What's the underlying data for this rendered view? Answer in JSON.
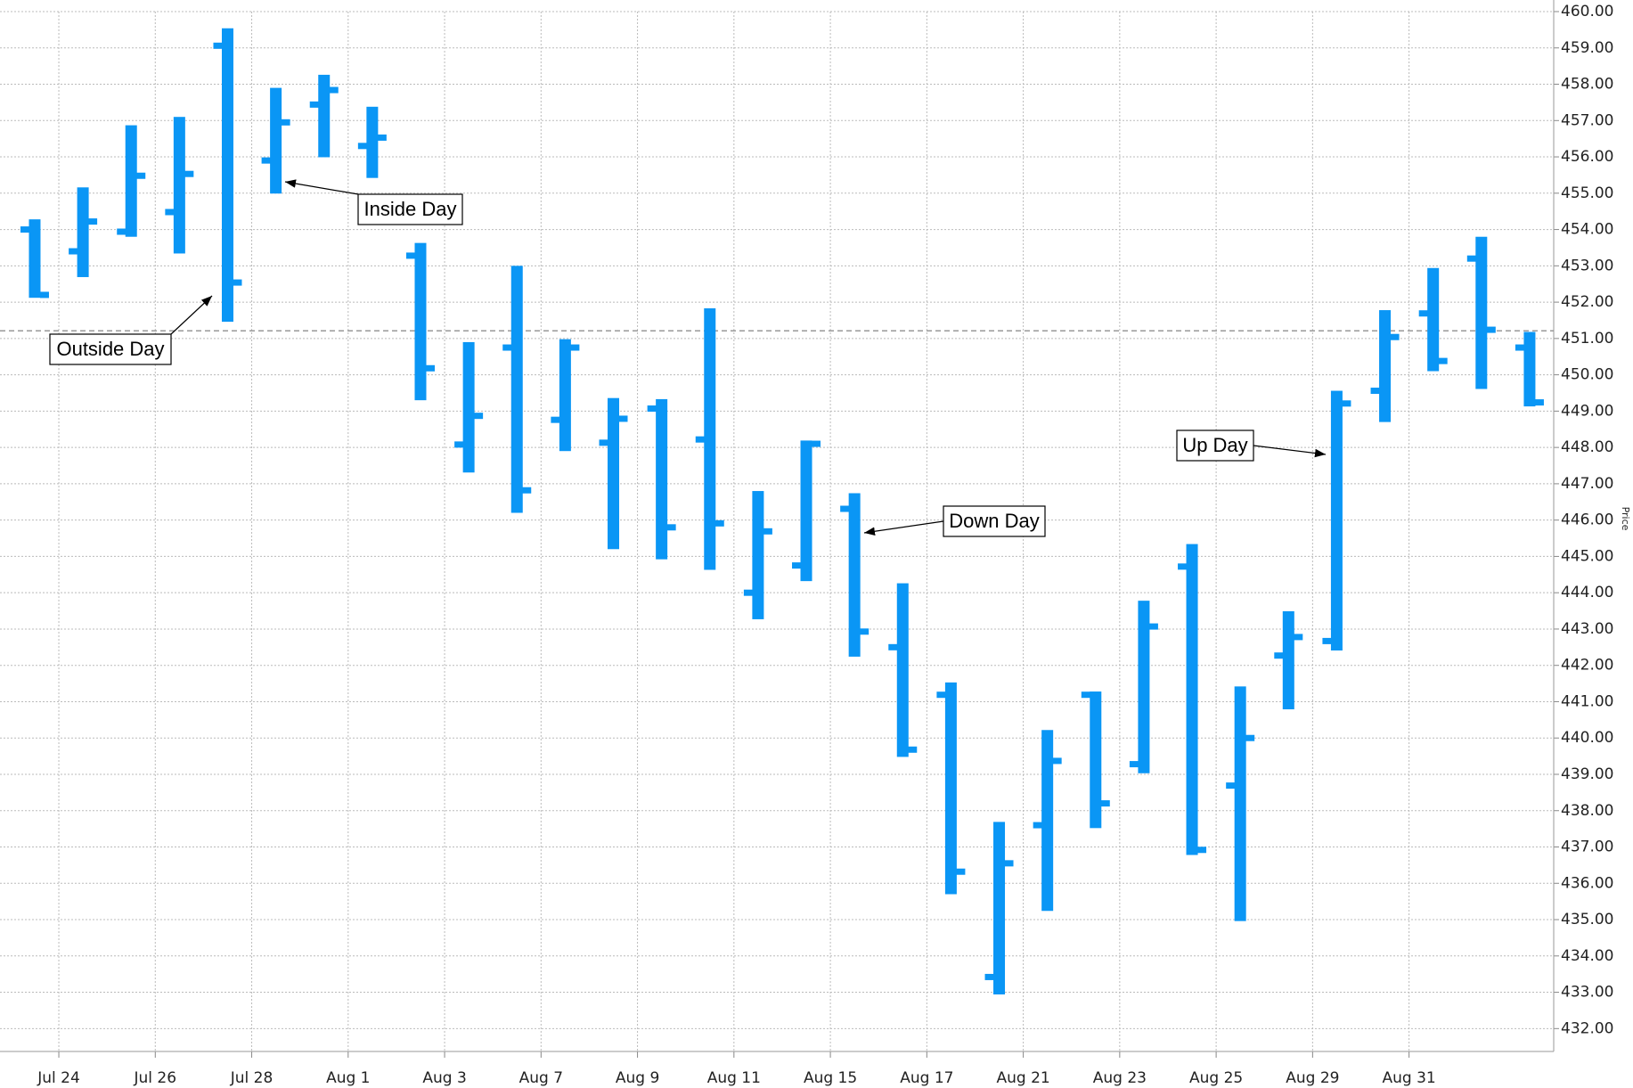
{
  "chart_data": {
    "type": "ohlc",
    "y_label": "Price",
    "color": "#0a96f5",
    "x": [
      1,
      2,
      3,
      4,
      5,
      6,
      7,
      8,
      9,
      10,
      11,
      12,
      13,
      14,
      15,
      16,
      17,
      18,
      19,
      20,
      21,
      22,
      23,
      24,
      25,
      26,
      27,
      28,
      29,
      30,
      31,
      32
    ],
    "open": [
      454.0,
      453.4,
      453.94,
      454.48,
      459.06,
      455.9,
      457.44,
      456.3,
      453.28,
      448.08,
      450.75,
      448.76,
      448.13,
      449.07,
      448.22,
      444.0,
      444.75,
      446.31,
      442.5,
      441.19,
      433.42,
      437.6,
      441.19,
      439.28,
      444.72,
      438.69,
      442.27,
      442.67,
      449.56,
      451.69,
      453.2,
      450.75
    ],
    "high": [
      454.28,
      455.16,
      456.87,
      457.1,
      459.54,
      457.9,
      458.26,
      457.38,
      453.63,
      450.9,
      453.0,
      450.98,
      449.36,
      449.33,
      451.83,
      446.8,
      448.19,
      446.74,
      444.26,
      441.53,
      437.69,
      440.22,
      441.28,
      443.78,
      445.34,
      441.42,
      443.49,
      449.56,
      451.78,
      452.94,
      453.8,
      451.18
    ],
    "low": [
      452.12,
      452.69,
      453.8,
      453.34,
      451.46,
      454.99,
      455.99,
      455.42,
      449.3,
      447.31,
      446.2,
      447.9,
      445.2,
      444.92,
      444.63,
      443.27,
      444.32,
      442.24,
      439.48,
      435.7,
      432.94,
      435.24,
      437.52,
      439.03,
      436.78,
      434.96,
      440.79,
      442.41,
      448.7,
      450.1,
      449.61,
      449.13
    ],
    "close": [
      452.2,
      454.22,
      455.48,
      455.53,
      452.54,
      456.95,
      457.84,
      456.53,
      450.18,
      448.87,
      446.82,
      450.75,
      448.79,
      445.8,
      445.91,
      445.69,
      448.1,
      442.93,
      439.68,
      436.32,
      436.55,
      439.37,
      438.2,
      443.07,
      436.92,
      440.0,
      442.78,
      449.21,
      451.04,
      450.38,
      451.24,
      449.24
    ],
    "xlim": [
      0.28,
      32.5
    ],
    "xticks": [
      {
        "value": 1.5,
        "label": "Jul 24"
      },
      {
        "value": 3.5,
        "label": "Jul 26"
      },
      {
        "value": 5.5,
        "label": "Jul 28"
      },
      {
        "value": 7.5,
        "label": "Aug 1"
      },
      {
        "value": 9.5,
        "label": "Aug 3"
      },
      {
        "value": 11.5,
        "label": "Aug 7"
      },
      {
        "value": 13.5,
        "label": "Aug 9"
      },
      {
        "value": 15.5,
        "label": "Aug 11"
      },
      {
        "value": 17.5,
        "label": "Aug 15"
      },
      {
        "value": 19.5,
        "label": "Aug 17"
      },
      {
        "value": 21.5,
        "label": "Aug 21"
      },
      {
        "value": 23.5,
        "label": "Aug 23"
      },
      {
        "value": 25.5,
        "label": "Aug 25"
      },
      {
        "value": 27.5,
        "label": "Aug 29"
      },
      {
        "value": 29.5,
        "label": "Aug 31"
      }
    ],
    "ylim": [
      431.37,
      460.0
    ],
    "yticks": [
      {
        "value": 432,
        "label": "432.00"
      },
      {
        "value": 433,
        "label": "433.00"
      },
      {
        "value": 434,
        "label": "434.00"
      },
      {
        "value": 435,
        "label": "435.00"
      },
      {
        "value": 436,
        "label": "436.00"
      },
      {
        "value": 437,
        "label": "437.00"
      },
      {
        "value": 438,
        "label": "438.00"
      },
      {
        "value": 439,
        "label": "439.00"
      },
      {
        "value": 440,
        "label": "440.00"
      },
      {
        "value": 441,
        "label": "441.00"
      },
      {
        "value": 442,
        "label": "442.00"
      },
      {
        "value": 443,
        "label": "443.00"
      },
      {
        "value": 444,
        "label": "444.00"
      },
      {
        "value": 445,
        "label": "445.00"
      },
      {
        "value": 446,
        "label": "446.00"
      },
      {
        "value": 447,
        "label": "447.00"
      },
      {
        "value": 448,
        "label": "448.00"
      },
      {
        "value": 449,
        "label": "449.00"
      },
      {
        "value": 450,
        "label": "450.00"
      },
      {
        "value": 451,
        "label": "451.00"
      },
      {
        "value": 452,
        "label": "452.00"
      },
      {
        "value": 453,
        "label": "453.00"
      },
      {
        "value": 454,
        "label": "454.00"
      },
      {
        "value": 455,
        "label": "455.00"
      },
      {
        "value": 456,
        "label": "456.00"
      },
      {
        "value": 457,
        "label": "457.00"
      },
      {
        "value": 458,
        "label": "458.00"
      },
      {
        "value": 459,
        "label": "459.00"
      },
      {
        "value": 460,
        "label": "460.00"
      }
    ],
    "reference_line": 451.21,
    "grid": true,
    "annotations": [
      "Outside Day",
      "Inside Day",
      "Down Day",
      "Up Day"
    ]
  }
}
